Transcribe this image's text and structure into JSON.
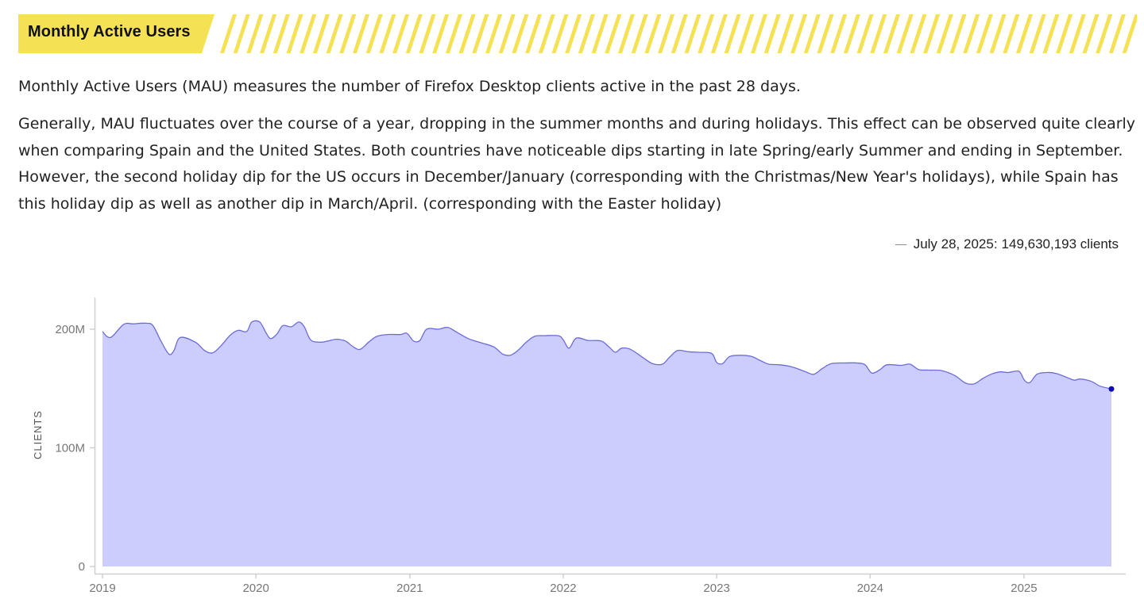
{
  "section": {
    "title": "Monthly Active Users",
    "accent_color": "#f5e154"
  },
  "intro_text": "Monthly Active Users (MAU) measures the number of Firefox Desktop clients active in the past 28 days.",
  "body_lines": [
    "Generally, MAU fluctuates over the course of a year, dropping in the summer months and during holidays. This effect can be observed quite clearly",
    "when comparing Spain and the United States. Both countries have noticeable dips starting in late Spring/early Summer and ending in September.",
    "However, the second holiday dip for the US occurs in December/January (corresponding with the Christmas/New Year's holidays), while Spain has",
    "this holiday dip as well as another dip in March/April. (corresponding with the Easter holiday)"
  ],
  "legend": {
    "date": "July 28, 2025:",
    "value": "149,630,193 clients"
  },
  "chart_data": {
    "type": "area",
    "ylabel": "CLIENTS",
    "ylim": [
      0,
      226000000
    ],
    "y_ticks": [
      {
        "value": 0,
        "label": "0"
      },
      {
        "value": 100000000,
        "label": "100M"
      },
      {
        "value": 200000000,
        "label": "200M"
      }
    ],
    "x_ticks": [
      "2019",
      "2020",
      "2021",
      "2022",
      "2023",
      "2024",
      "2025"
    ],
    "xlim": [
      "2019-01-01",
      "2025-08-31"
    ],
    "fill_color": "#cccdfd",
    "line_color": "#6b6dd6",
    "marker_color": "#0b0bb0",
    "highlight": {
      "x": "2025-07-28",
      "y": 149630193
    },
    "series": [
      {
        "points": [
          [
            "2019-01-01",
            198000000
          ],
          [
            "2019-01-20",
            193000000
          ],
          [
            "2019-02-20",
            204000000
          ],
          [
            "2019-03-15",
            204500000
          ],
          [
            "2019-04-15",
            205000000
          ],
          [
            "2019-05-01",
            203000000
          ],
          [
            "2019-05-20",
            190000000
          ],
          [
            "2019-06-08",
            179000000
          ],
          [
            "2019-06-20",
            182000000
          ],
          [
            "2019-07-05",
            193000000
          ],
          [
            "2019-08-10",
            189000000
          ],
          [
            "2019-09-01",
            182000000
          ],
          [
            "2019-09-20",
            180000000
          ],
          [
            "2019-10-10",
            186000000
          ],
          [
            "2019-11-01",
            195000000
          ],
          [
            "2019-11-20",
            199000000
          ],
          [
            "2019-12-10",
            198000000
          ],
          [
            "2019-12-22",
            206000000
          ],
          [
            "2020-01-10",
            206000000
          ],
          [
            "2020-01-25",
            197000000
          ],
          [
            "2020-02-05",
            192000000
          ],
          [
            "2020-02-20",
            196000000
          ],
          [
            "2020-03-05",
            203000000
          ],
          [
            "2020-03-25",
            202000000
          ],
          [
            "2020-04-12",
            206000000
          ],
          [
            "2020-04-25",
            202000000
          ],
          [
            "2020-05-10",
            191000000
          ],
          [
            "2020-06-01",
            189000000
          ],
          [
            "2020-06-20",
            190000000
          ],
          [
            "2020-07-10",
            191500000
          ],
          [
            "2020-08-01",
            190000000
          ],
          [
            "2020-08-20",
            185000000
          ],
          [
            "2020-09-05",
            183000000
          ],
          [
            "2020-09-25",
            189000000
          ],
          [
            "2020-10-15",
            194000000
          ],
          [
            "2020-11-10",
            195500000
          ],
          [
            "2020-12-10",
            195500000
          ],
          [
            "2020-12-25",
            196500000
          ],
          [
            "2021-01-10",
            190000000
          ],
          [
            "2021-01-25",
            190500000
          ],
          [
            "2021-02-10",
            200000000
          ],
          [
            "2021-03-10",
            200000000
          ],
          [
            "2021-04-01",
            201500000
          ],
          [
            "2021-04-20",
            198000000
          ],
          [
            "2021-05-20",
            192000000
          ],
          [
            "2021-06-20",
            188500000
          ],
          [
            "2021-07-20",
            185000000
          ],
          [
            "2021-08-10",
            179000000
          ],
          [
            "2021-08-28",
            178000000
          ],
          [
            "2021-09-15",
            182000000
          ],
          [
            "2021-10-05",
            189000000
          ],
          [
            "2021-10-25",
            194000000
          ],
          [
            "2021-11-15",
            194500000
          ],
          [
            "2021-12-20",
            194500000
          ],
          [
            "2022-01-01",
            191000000
          ],
          [
            "2022-01-15",
            184000000
          ],
          [
            "2022-02-01",
            192500000
          ],
          [
            "2022-03-01",
            190500000
          ],
          [
            "2022-04-01",
            190000000
          ],
          [
            "2022-04-20",
            185000000
          ],
          [
            "2022-05-05",
            180500000
          ],
          [
            "2022-05-20",
            184000000
          ],
          [
            "2022-06-10",
            183000000
          ],
          [
            "2022-07-10",
            176000000
          ],
          [
            "2022-08-01",
            171000000
          ],
          [
            "2022-08-25",
            170500000
          ],
          [
            "2022-09-10",
            176000000
          ],
          [
            "2022-09-30",
            182000000
          ],
          [
            "2022-10-25",
            181000000
          ],
          [
            "2022-11-20",
            180500000
          ],
          [
            "2022-12-20",
            179500000
          ],
          [
            "2023-01-01",
            172000000
          ],
          [
            "2023-01-15",
            171000000
          ],
          [
            "2023-02-01",
            177000000
          ],
          [
            "2023-03-01",
            178000000
          ],
          [
            "2023-03-25",
            177000000
          ],
          [
            "2023-04-15",
            173500000
          ],
          [
            "2023-05-05",
            170500000
          ],
          [
            "2023-06-01",
            170000000
          ],
          [
            "2023-07-01",
            168000000
          ],
          [
            "2023-08-01",
            164000000
          ],
          [
            "2023-08-20",
            162000000
          ],
          [
            "2023-09-10",
            167000000
          ],
          [
            "2023-10-01",
            171000000
          ],
          [
            "2023-11-01",
            171500000
          ],
          [
            "2023-12-01",
            171500000
          ],
          [
            "2023-12-20",
            170000000
          ],
          [
            "2024-01-05",
            163000000
          ],
          [
            "2024-01-25",
            166000000
          ],
          [
            "2024-02-10",
            170000000
          ],
          [
            "2024-03-15",
            169500000
          ],
          [
            "2024-04-05",
            170500000
          ],
          [
            "2024-04-25",
            166000000
          ],
          [
            "2024-05-20",
            165500000
          ],
          [
            "2024-06-20",
            165000000
          ],
          [
            "2024-07-20",
            161000000
          ],
          [
            "2024-08-15",
            154500000
          ],
          [
            "2024-09-05",
            154000000
          ],
          [
            "2024-09-25",
            158500000
          ],
          [
            "2024-10-15",
            162000000
          ],
          [
            "2024-11-05",
            164000000
          ],
          [
            "2024-11-25",
            163500000
          ],
          [
            "2024-12-20",
            164500000
          ],
          [
            "2025-01-02",
            157000000
          ],
          [
            "2025-01-15",
            155000000
          ],
          [
            "2025-02-01",
            162000000
          ],
          [
            "2025-02-25",
            163500000
          ],
          [
            "2025-03-20",
            162500000
          ],
          [
            "2025-04-15",
            159000000
          ],
          [
            "2025-05-01",
            157000000
          ],
          [
            "2025-05-15",
            158000000
          ],
          [
            "2025-06-10",
            156000000
          ],
          [
            "2025-07-01",
            152000000
          ],
          [
            "2025-07-28",
            149630193
          ]
        ]
      }
    ]
  }
}
